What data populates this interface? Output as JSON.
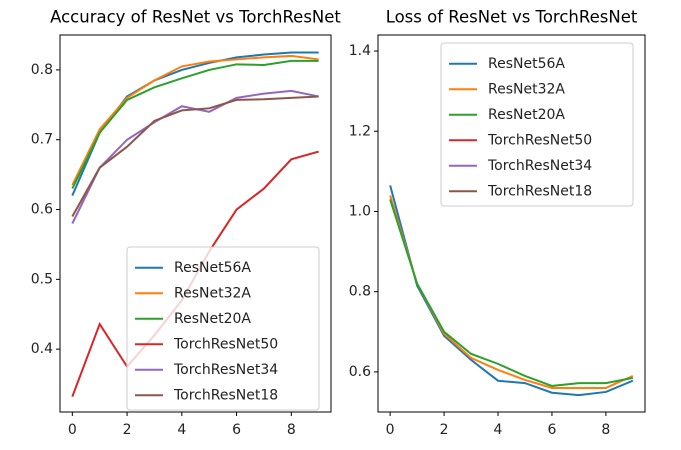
{
  "chart_data": [
    {
      "type": "line",
      "title": "Accuracy of ResNet vs TorchResNet",
      "x": [
        0,
        1,
        2,
        3,
        4,
        5,
        6,
        7,
        8,
        9
      ],
      "xlim": [
        -0.45,
        9.45
      ],
      "xticks": [
        0,
        2,
        4,
        6,
        8
      ],
      "ylim": [
        0.31,
        0.85
      ],
      "yticks": [
        {
          "value": 0.4,
          "label": "0.4"
        },
        {
          "value": 0.5,
          "label": "0.5"
        },
        {
          "value": 0.6,
          "label": "0.6"
        },
        {
          "value": 0.7,
          "label": "0.7"
        },
        {
          "value": 0.8,
          "label": "0.8"
        }
      ],
      "legend": "lower right",
      "series": [
        {
          "name": "ResNet56A",
          "color": "#1f77b4",
          "values": [
            0.62,
            0.71,
            0.762,
            0.785,
            0.8,
            0.81,
            0.818,
            0.822,
            0.825,
            0.825
          ]
        },
        {
          "name": "ResNet32A",
          "color": "#ff7f0e",
          "values": [
            0.635,
            0.715,
            0.76,
            0.785,
            0.805,
            0.812,
            0.815,
            0.818,
            0.82,
            0.815
          ]
        },
        {
          "name": "ResNet20A",
          "color": "#2ca02c",
          "values": [
            0.63,
            0.71,
            0.757,
            0.775,
            0.788,
            0.8,
            0.808,
            0.807,
            0.813,
            0.813
          ]
        },
        {
          "name": "TorchResNet50",
          "color": "#d62728",
          "values": [
            0.332,
            0.436,
            0.375,
            0.42,
            0.47,
            0.54,
            0.6,
            0.63,
            0.672,
            0.683
          ]
        },
        {
          "name": "TorchResNet34",
          "color": "#9467bd",
          "values": [
            0.58,
            0.66,
            0.7,
            0.725,
            0.748,
            0.74,
            0.76,
            0.766,
            0.77,
            0.762
          ]
        },
        {
          "name": "TorchResNet18",
          "color": "#8c564b",
          "values": [
            0.59,
            0.66,
            0.69,
            0.727,
            0.742,
            0.745,
            0.757,
            0.758,
            0.76,
            0.762
          ]
        }
      ]
    },
    {
      "type": "line",
      "title": "Loss of ResNet vs TorchResNet",
      "x": [
        0,
        1,
        2,
        3,
        4,
        5,
        6,
        7,
        8,
        9
      ],
      "xlim": [
        -0.45,
        9.45
      ],
      "xticks": [
        0,
        2,
        4,
        6,
        8
      ],
      "ylim": [
        0.5,
        1.44
      ],
      "yticks": [
        {
          "value": 0.6,
          "label": "0.6"
        },
        {
          "value": 0.8,
          "label": "0.8"
        },
        {
          "value": 1.0,
          "label": "1.0"
        },
        {
          "value": 1.2,
          "label": "1.2"
        },
        {
          "value": 1.4,
          "label": "1.4"
        }
      ],
      "legend": "upper right",
      "series": [
        {
          "name": "ResNet56A",
          "color": "#1f77b4",
          "values": [
            1.065,
            0.815,
            0.69,
            0.63,
            0.578,
            0.572,
            0.548,
            0.542,
            0.55,
            0.578
          ]
        },
        {
          "name": "ResNet32A",
          "color": "#ff7f0e",
          "values": [
            1.04,
            0.82,
            0.695,
            0.635,
            0.605,
            0.58,
            0.56,
            0.56,
            0.56,
            0.59
          ]
        },
        {
          "name": "ResNet20A",
          "color": "#2ca02c",
          "values": [
            1.03,
            0.82,
            0.7,
            0.645,
            0.62,
            0.59,
            0.565,
            0.572,
            0.572,
            0.585
          ]
        },
        {
          "name": "TorchResNet50",
          "color": "#d62728",
          "values": [
            null,
            null,
            null,
            null,
            null,
            null,
            null,
            null,
            null,
            null
          ]
        },
        {
          "name": "TorchResNet34",
          "color": "#9467bd",
          "values": [
            null,
            null,
            null,
            null,
            null,
            null,
            null,
            null,
            null,
            null
          ]
        },
        {
          "name": "TorchResNet18",
          "color": "#8c564b",
          "values": [
            null,
            null,
            null,
            null,
            null,
            null,
            null,
            null,
            null,
            null
          ]
        }
      ]
    }
  ]
}
